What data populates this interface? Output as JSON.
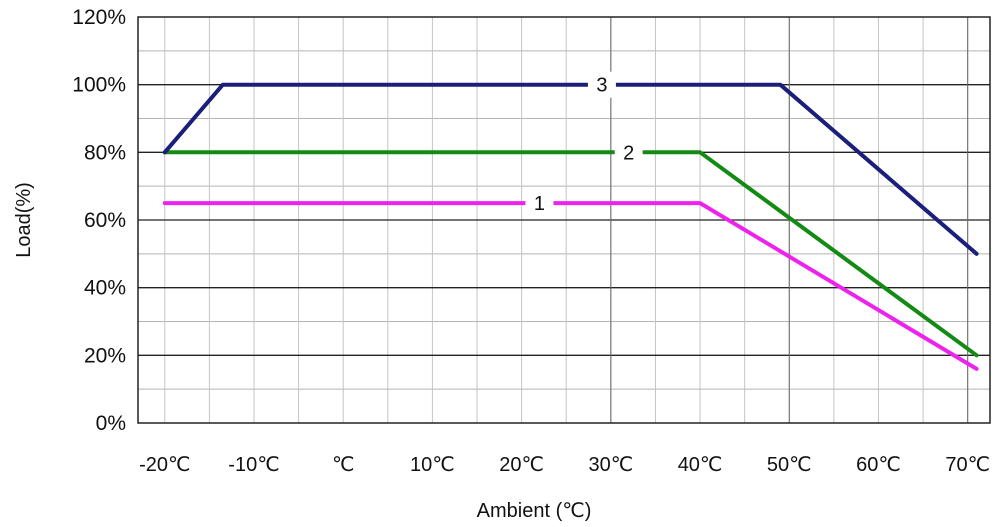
{
  "chart_data": {
    "type": "line",
    "xlabel": "Ambient (℃)",
    "ylabel": "Load(%)",
    "x_ticks": [
      {
        "value": -20,
        "label": "-20℃"
      },
      {
        "value": -10,
        "label": "-10℃"
      },
      {
        "value": 0,
        "label": "℃"
      },
      {
        "value": 10,
        "label": "10℃"
      },
      {
        "value": 20,
        "label": "20℃"
      },
      {
        "value": 30,
        "label": "30℃"
      },
      {
        "value": 40,
        "label": "40℃"
      },
      {
        "value": 50,
        "label": "50℃"
      },
      {
        "value": 60,
        "label": "60℃"
      },
      {
        "value": 70,
        "label": "70℃"
      }
    ],
    "y_ticks": [
      {
        "value": 0,
        "label": "0%"
      },
      {
        "value": 20,
        "label": "20%"
      },
      {
        "value": 40,
        "label": "40%"
      },
      {
        "value": 60,
        "label": "60%"
      },
      {
        "value": 80,
        "label": "80%"
      },
      {
        "value": 100,
        "label": "100%"
      },
      {
        "value": 120,
        "label": "120%"
      }
    ],
    "xlim": [
      -23,
      72.5
    ],
    "ylim": [
      0,
      120
    ],
    "grid": true,
    "series": [
      {
        "name": "1",
        "color": "#ee22ee",
        "points": [
          [
            -20,
            65
          ],
          [
            40,
            65
          ],
          [
            71,
            16
          ]
        ],
        "label_at": [
          22,
          65
        ]
      },
      {
        "name": "2",
        "color": "#138a13",
        "points": [
          [
            -20,
            80
          ],
          [
            40,
            80
          ],
          [
            71,
            20
          ]
        ],
        "label_at": [
          32,
          80
        ]
      },
      {
        "name": "3",
        "color": "#1a1f7a",
        "points": [
          [
            -20,
            80
          ],
          [
            -13.5,
            100
          ],
          [
            49,
            100
          ],
          [
            71,
            50
          ]
        ],
        "label_at": [
          29,
          100
        ]
      }
    ]
  }
}
